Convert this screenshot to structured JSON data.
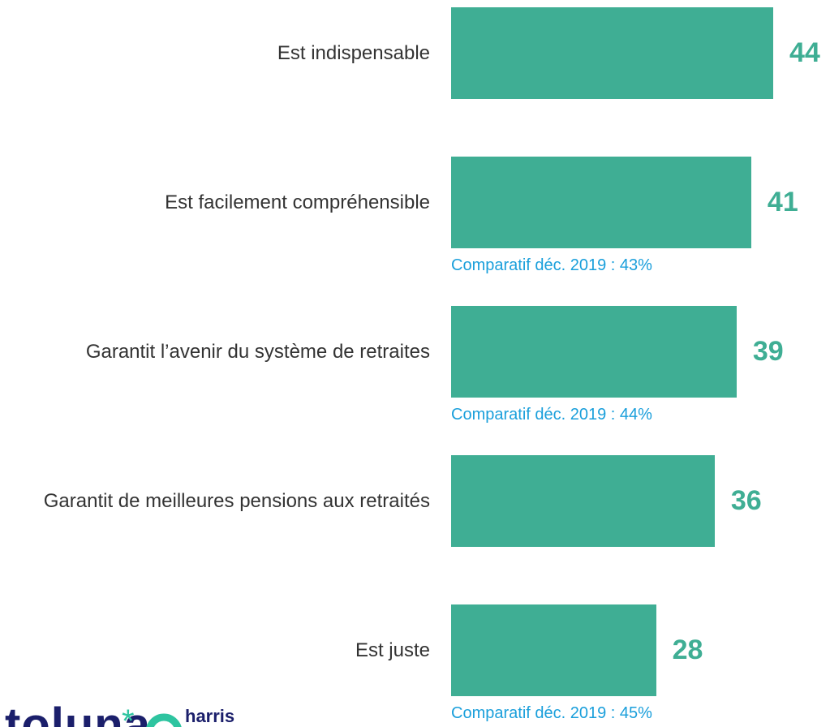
{
  "chart_data": {
    "type": "barh",
    "categories": [
      "Est indispensable",
      "Est facilement compréhensible",
      "Garantit l’avenir du système de retraites",
      "Garantit de meilleures pensions aux retraités",
      "Est juste"
    ],
    "values": [
      44,
      41,
      39,
      36,
      28
    ],
    "color": "#3fae94",
    "xlim": [
      0,
      44
    ],
    "comparisons": [
      null,
      "Comparatif déc. 2019 : 43%",
      "Comparatif déc. 2019 : 44%",
      null,
      "Comparatif déc. 2019 : 45%"
    ]
  },
  "logo": {
    "brand": "toluna",
    "partner": "harris"
  }
}
